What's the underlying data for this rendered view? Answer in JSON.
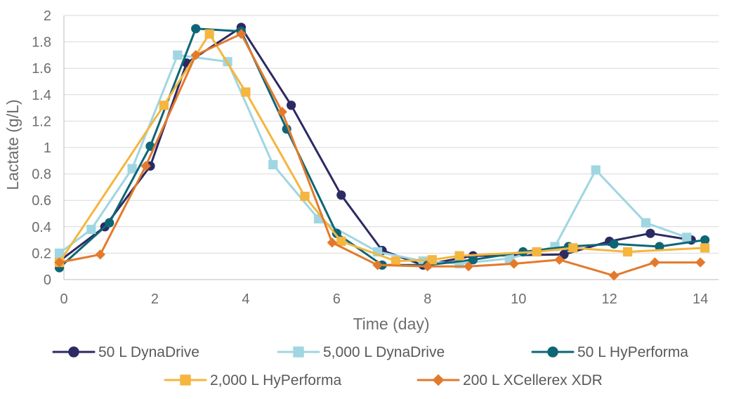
{
  "chart_data": {
    "type": "line",
    "title": "",
    "xlabel": "Time (day)",
    "ylabel": "Lactate (g/L)",
    "xlim": [
      0,
      14.4
    ],
    "ylim": [
      0,
      2
    ],
    "xticks": [
      0,
      2,
      4,
      6,
      8,
      10,
      12,
      14
    ],
    "yticks": [
      0,
      0.2,
      0.4,
      0.6,
      0.8,
      1,
      1.2,
      1.4,
      1.6,
      1.8,
      2
    ],
    "x_tick_labels": [
      "0",
      "2",
      "4",
      "6",
      "8",
      "10",
      "12",
      "14"
    ],
    "y_tick_labels": [
      "0",
      "0.2",
      "0.4",
      "0.6",
      "0.8",
      "1",
      "1.2",
      "1.4",
      "1.6",
      "1.8",
      "2"
    ],
    "grid": "horizontal",
    "legend_position": "bottom",
    "series": [
      {
        "name": "50 L DynaDrive",
        "color": "#2b2a63",
        "marker": "circle",
        "points": [
          [
            -0.1,
            0.14
          ],
          [
            0.9,
            0.4
          ],
          [
            1.9,
            0.86
          ],
          [
            2.7,
            1.64
          ],
          [
            3.9,
            1.91
          ],
          [
            5.0,
            1.32
          ],
          [
            6.1,
            0.64
          ],
          [
            7.0,
            0.22
          ],
          [
            7.9,
            0.11
          ],
          [
            9.0,
            0.18
          ],
          [
            11.0,
            0.19
          ],
          [
            12.0,
            0.29
          ],
          [
            12.9,
            0.35
          ],
          [
            13.8,
            0.3
          ]
        ]
      },
      {
        "name": "5,000 L DynaDrive",
        "color": "#9fd6e2",
        "marker": "square",
        "points": [
          [
            -0.1,
            0.2
          ],
          [
            0.6,
            0.38
          ],
          [
            1.5,
            0.84
          ],
          [
            2.5,
            1.7
          ],
          [
            3.6,
            1.65
          ],
          [
            4.6,
            0.87
          ],
          [
            5.6,
            0.46
          ],
          [
            6.9,
            0.21
          ],
          [
            7.9,
            0.14
          ],
          [
            8.7,
            0.12
          ],
          [
            9.8,
            0.16
          ],
          [
            10.8,
            0.25
          ],
          [
            11.7,
            0.83
          ],
          [
            12.8,
            0.43
          ],
          [
            13.7,
            0.32
          ]
        ]
      },
      {
        "name": "50 L HyPerforma",
        "color": "#0d6676",
        "marker": "circle",
        "points": [
          [
            -0.1,
            0.09
          ],
          [
            1.0,
            0.43
          ],
          [
            1.9,
            1.01
          ],
          [
            2.9,
            1.9
          ],
          [
            3.9,
            1.88
          ],
          [
            4.9,
            1.14
          ],
          [
            6.0,
            0.35
          ],
          [
            7.0,
            0.11
          ],
          [
            8.0,
            0.11
          ],
          [
            9.0,
            0.15
          ],
          [
            10.1,
            0.21
          ],
          [
            11.1,
            0.25
          ],
          [
            12.1,
            0.27
          ],
          [
            13.1,
            0.25
          ],
          [
            14.1,
            0.3
          ]
        ]
      },
      {
        "name": "2,000 L HyPerforma",
        "color": "#f4b63f",
        "marker": "square",
        "points": [
          [
            -0.1,
            0.13
          ],
          [
            2.2,
            1.32
          ],
          [
            3.2,
            1.86
          ],
          [
            4.0,
            1.42
          ],
          [
            5.3,
            0.63
          ],
          [
            6.1,
            0.29
          ],
          [
            7.3,
            0.14
          ],
          [
            8.1,
            0.15
          ],
          [
            8.7,
            0.18
          ],
          [
            10.4,
            0.21
          ],
          [
            11.2,
            0.24
          ],
          [
            12.4,
            0.21
          ],
          [
            14.1,
            0.24
          ]
        ]
      },
      {
        "name": "200 L XCellerex XDR",
        "color": "#e37a2b",
        "marker": "diamond",
        "points": [
          [
            -0.1,
            0.13
          ],
          [
            0.8,
            0.19
          ],
          [
            1.8,
            0.86
          ],
          [
            2.9,
            1.7
          ],
          [
            3.9,
            1.86
          ],
          [
            4.8,
            1.27
          ],
          [
            5.9,
            0.28
          ],
          [
            6.9,
            0.11
          ],
          [
            8.0,
            0.1
          ],
          [
            8.9,
            0.1
          ],
          [
            9.9,
            0.12
          ],
          [
            10.9,
            0.15
          ],
          [
            12.1,
            0.03
          ],
          [
            13.0,
            0.13
          ],
          [
            14.0,
            0.13
          ]
        ]
      }
    ]
  }
}
